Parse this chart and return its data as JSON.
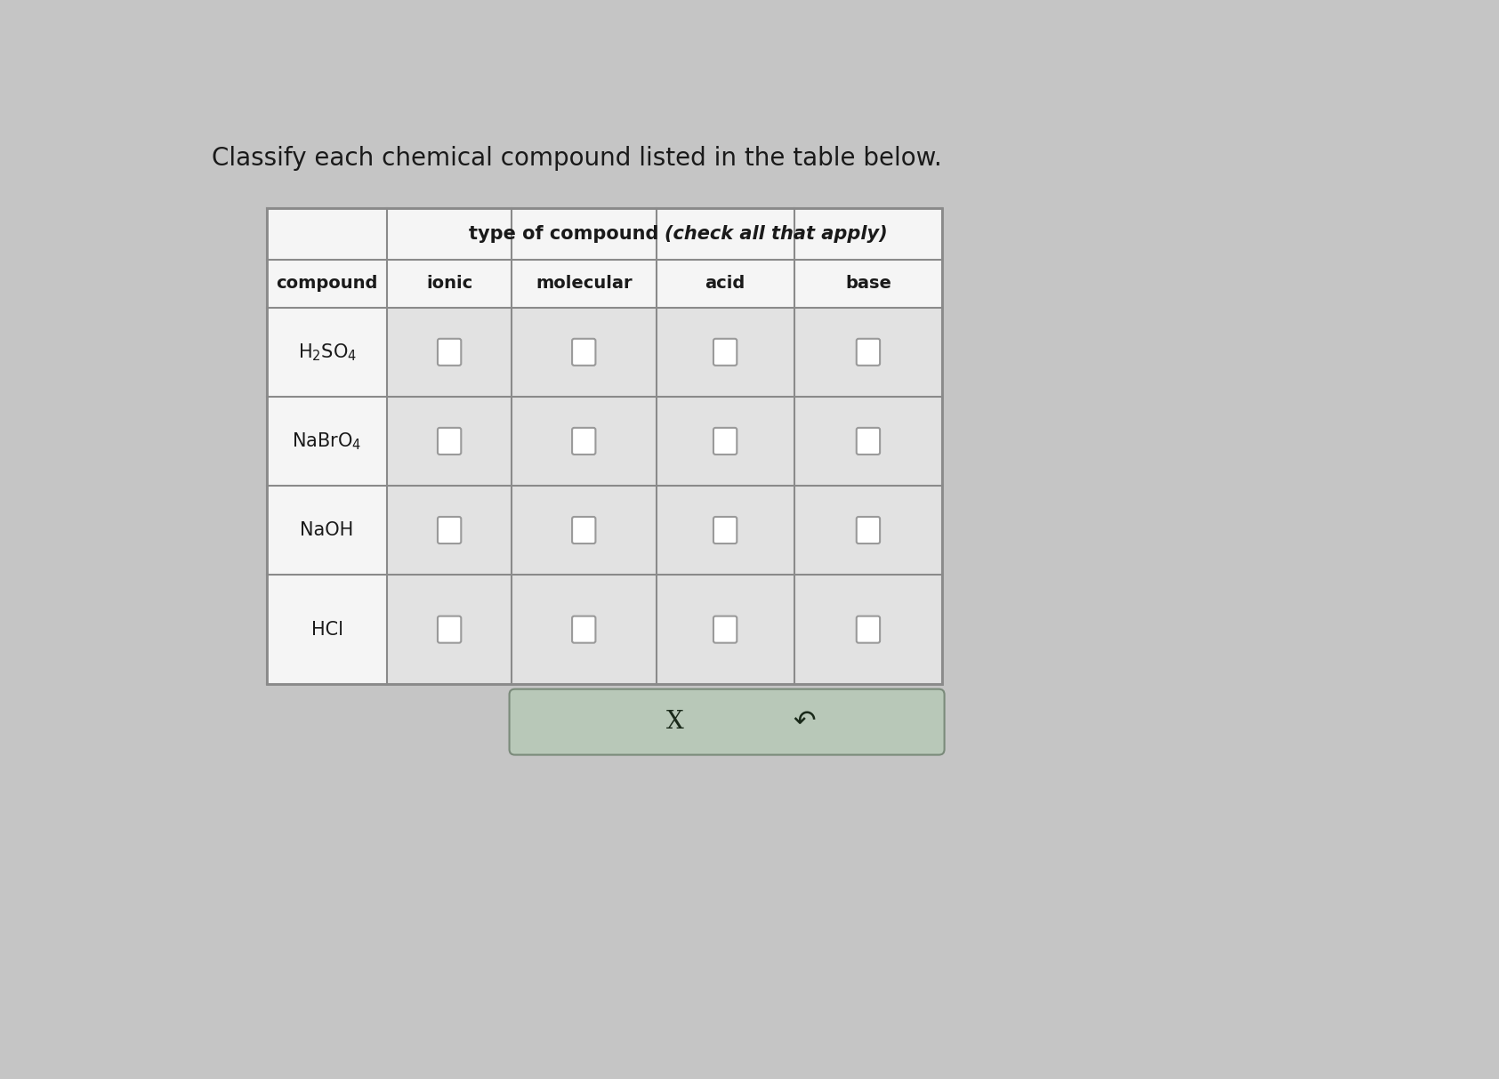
{
  "title": "Classify each chemical compound listed in the table below.",
  "title_fontsize": 20,
  "header_main_bold": "type of compound ",
  "header_main_italic": "(check all that apply)",
  "header_main_fontsize": 15,
  "header_sub": [
    "ionic",
    "molecular",
    "acid",
    "base"
  ],
  "header_sub_fontsize": 14,
  "compound_label": "compound",
  "compound_label_fontsize": 14,
  "compounds_latex": [
    "H$_2$SO$_4$",
    "NaBrO$_4$",
    "NaOH",
    "HCl"
  ],
  "compound_fontsize": 15,
  "bg_color": "#c5c5c5",
  "outer_bg": "#d8d8d8",
  "table_white": "#f5f5f5",
  "cell_bg": "#e2e2e2",
  "header_bg": "#f0f0f0",
  "border_color": "#8a8a8a",
  "button_bg": "#b8c8b8",
  "button_border": "#7a8a7a",
  "checkbox_fill": "#ffffff",
  "checkbox_border": "#9a9a9a",
  "text_color": "#1a1a1a",
  "button_text": "#1a2a1a"
}
